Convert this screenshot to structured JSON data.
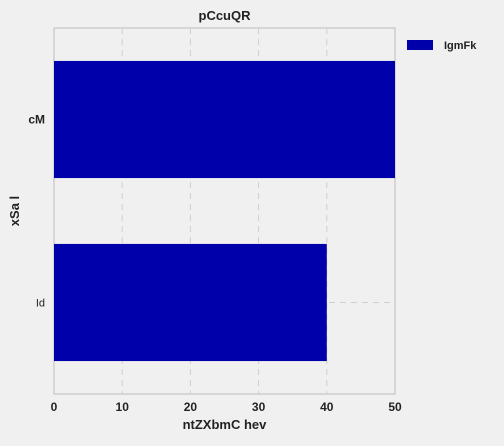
{
  "chart_data": {
    "type": "bar",
    "orientation": "horizontal",
    "title": "pCcuQR",
    "xlabel": "ntZXbmC hev",
    "ylabel": "xSa l",
    "categories": [
      "cM",
      "Id"
    ],
    "series": [
      {
        "name": "IgmFk",
        "values": [
          50,
          40
        ],
        "color": "#0000aa"
      }
    ],
    "xlim": [
      0,
      50
    ],
    "xticks": [
      0,
      10,
      20,
      30,
      40,
      50
    ],
    "grid": true,
    "legend_position": "top-right"
  }
}
